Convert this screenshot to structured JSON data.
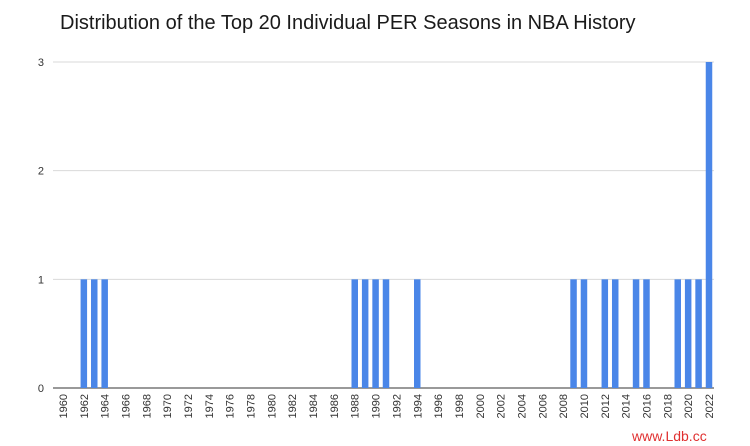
{
  "chart_data": {
    "type": "bar",
    "title": "Distribution of the Top 20 Individual PER Seasons in NBA History",
    "xlabel": "",
    "ylabel": "",
    "x_tick_labels": [
      "1960",
      "1962",
      "1964",
      "1966",
      "1968",
      "1970",
      "1972",
      "1974",
      "1976",
      "1978",
      "1980",
      "1982",
      "1984",
      "1986",
      "1988",
      "1990",
      "1992",
      "1994",
      "1996",
      "1998",
      "2000",
      "2002",
      "2004",
      "2006",
      "2008",
      "2010",
      "2012",
      "2014",
      "2016",
      "2018",
      "2020",
      "2022"
    ],
    "x_range": [
      1960,
      2022
    ],
    "y_ticks": [
      0,
      1,
      2,
      3
    ],
    "ylim": [
      0,
      3
    ],
    "grid": true,
    "color": "#4a86e8",
    "points": [
      {
        "x": 1962,
        "y": 1
      },
      {
        "x": 1963,
        "y": 1
      },
      {
        "x": 1964,
        "y": 1
      },
      {
        "x": 1988,
        "y": 1
      },
      {
        "x": 1989,
        "y": 1
      },
      {
        "x": 1990,
        "y": 1
      },
      {
        "x": 1991,
        "y": 1
      },
      {
        "x": 1994,
        "y": 1
      },
      {
        "x": 2009,
        "y": 1
      },
      {
        "x": 2010,
        "y": 1
      },
      {
        "x": 2012,
        "y": 1
      },
      {
        "x": 2013,
        "y": 1
      },
      {
        "x": 2015,
        "y": 1
      },
      {
        "x": 2016,
        "y": 1
      },
      {
        "x": 2019,
        "y": 1
      },
      {
        "x": 2020,
        "y": 1
      },
      {
        "x": 2021,
        "y": 1
      },
      {
        "x": 2022,
        "y": 3
      }
    ]
  },
  "watermark": "www.Ldb.cc"
}
